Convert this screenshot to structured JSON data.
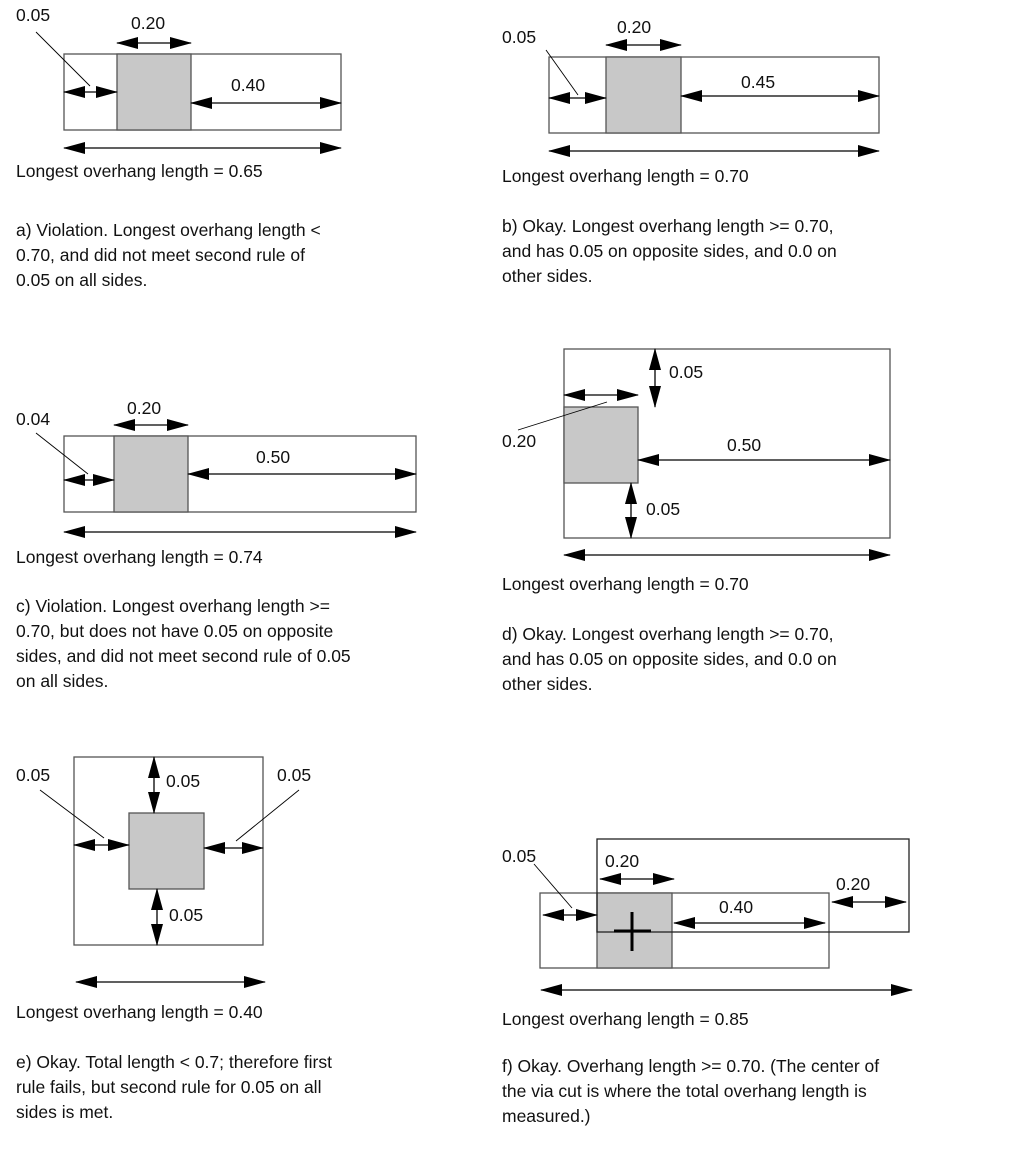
{
  "panels": {
    "a": {
      "labels": {
        "left": "0.05",
        "via": "0.20",
        "right": "0.40"
      },
      "longest": "Longest overhang length = 0.65",
      "caption": [
        "a) Violation. Longest overhang length <",
        "0.70, and did not meet second rule of",
        "0.05 on all sides."
      ]
    },
    "b": {
      "labels": {
        "left": "0.05",
        "via": "0.20",
        "right": "0.45"
      },
      "longest": "Longest overhang length = 0.70",
      "caption": [
        "b) Okay. Longest overhang length >= 0.70,",
        "and has 0.05 on opposite sides, and 0.0 on",
        "other sides."
      ]
    },
    "c": {
      "labels": {
        "left": "0.04",
        "via": "0.20",
        "right": "0.50"
      },
      "longest": "Longest overhang length = 0.74",
      "caption": [
        "c) Violation. Longest overhang length >=",
        "0.70, but does not have 0.05 on opposite",
        "sides, and did not meet second rule of 0.05",
        "on all sides."
      ]
    },
    "d": {
      "labels": {
        "top": "0.05",
        "via": "0.20",
        "right": "0.50",
        "bottom": "0.05"
      },
      "longest": "Longest overhang length = 0.70",
      "caption": [
        "d) Okay. Longest overhang length >= 0.70,",
        "and has 0.05 on opposite sides, and 0.0 on",
        "other sides."
      ]
    },
    "e": {
      "labels": {
        "left": "0.05",
        "top": "0.05",
        "right": "0.05",
        "bottom": "0.05"
      },
      "longest": "Longest overhang length = 0.40",
      "caption": [
        "e) Okay. Total length < 0.7; therefore first",
        "rule fails, but second rule for 0.05 on all",
        "sides is met."
      ]
    },
    "f": {
      "labels": {
        "left": "0.05",
        "via": "0.20",
        "middle": "0.40",
        "right": "0.20"
      },
      "longest": "Longest overhang length = 0.85",
      "caption": [
        "f) Okay. Overhang length >= 0.70. (The center of",
        "the via cut is where the total overhang length is",
        "measured.)"
      ]
    }
  }
}
